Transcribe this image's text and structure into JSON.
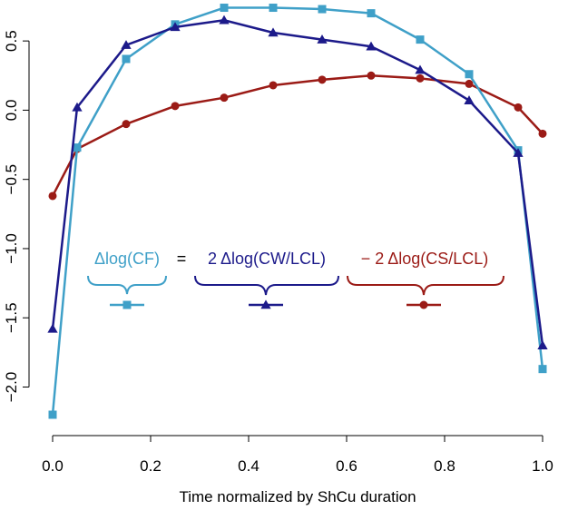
{
  "chart_data": {
    "type": "line",
    "xlabel": "Time normalized by ShCu duration",
    "ylabel": "",
    "xlim": [
      0,
      1
    ],
    "ylim": [
      -2.2,
      0.75
    ],
    "xticks": [
      0.0,
      0.2,
      0.4,
      0.6,
      0.8,
      1.0
    ],
    "xtick_labels": [
      "0.0",
      "0.2",
      "0.4",
      "0.6",
      "0.8",
      "1.0"
    ],
    "yticks": [
      -2.0,
      -1.5,
      -1.0,
      -0.5,
      0.0,
      0.5
    ],
    "ytick_labels": [
      "−2.0",
      "−1.5",
      "−1.0",
      "−0.5",
      "0.0",
      "0.5"
    ],
    "grid": false,
    "legend_position": "center",
    "x": [
      0.0,
      0.05,
      0.15,
      0.25,
      0.35,
      0.45,
      0.55,
      0.65,
      0.75,
      0.85,
      0.95,
      1.0
    ],
    "series": [
      {
        "name": "Δlog(CF)",
        "color": "#3fa0c8",
        "marker": "square",
        "values": [
          -2.2,
          -0.27,
          0.37,
          0.62,
          0.74,
          0.74,
          0.73,
          0.7,
          0.51,
          0.26,
          -0.29,
          -1.87
        ]
      },
      {
        "name": "2 Δlog(CW/LCL)",
        "color": "#1c1a8a",
        "marker": "triangle",
        "values": [
          -1.58,
          0.02,
          0.47,
          0.6,
          0.65,
          0.56,
          0.51,
          0.46,
          0.29,
          0.07,
          -0.31,
          -1.7
        ]
      },
      {
        "name": "− 2 Δlog(CS/LCL)",
        "color": "#9b1b16",
        "marker": "circle",
        "values": [
          -0.62,
          -0.28,
          -0.1,
          0.03,
          0.09,
          0.18,
          0.22,
          0.25,
          0.23,
          0.19,
          0.02,
          -0.17
        ]
      }
    ],
    "legend_equals": "="
  }
}
